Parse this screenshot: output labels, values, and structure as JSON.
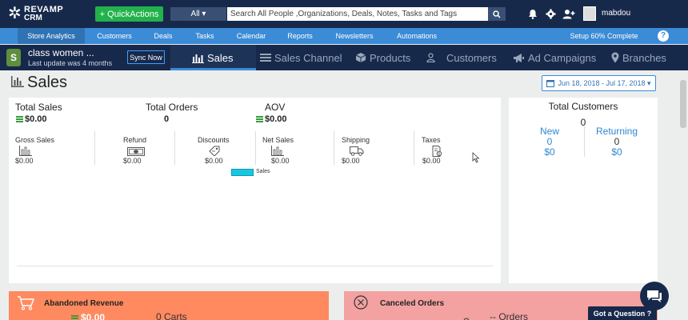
{
  "topbar": {
    "logo_line1": "REVAMP",
    "logo_line2": "CRM",
    "quick_actions": "+ QuickActions",
    "search_scope": "All ▾",
    "search_placeholder": "Search All People ,Organizations, Deals, Notes, Tasks and Tags",
    "username": "mabdou"
  },
  "nav": {
    "items": [
      {
        "label": "Store Analytics"
      },
      {
        "label": "Customers"
      },
      {
        "label": "Deals"
      },
      {
        "label": "Tasks"
      },
      {
        "label": "Calendar"
      },
      {
        "label": "Reports"
      },
      {
        "label": "Newsletters"
      },
      {
        "label": "Automations"
      }
    ],
    "setup": "Setup 60% Complete",
    "help": "?"
  },
  "store": {
    "name": "class women ...",
    "update": "Last update was 4 months",
    "sync": "Sync Now",
    "tabs": [
      {
        "label": "Sales"
      },
      {
        "label": "Sales Channel"
      },
      {
        "label": "Products"
      },
      {
        "label": "Customers"
      },
      {
        "label": "Ad Campaigns"
      },
      {
        "label": "Branches"
      }
    ]
  },
  "page": {
    "title": "Sales",
    "date_range": "Jun 18, 2018 - Jul 17, 2018 ▾"
  },
  "kpis": {
    "total_sales_label": "Total Sales",
    "total_sales_value": "$0.00",
    "total_orders_label": "Total Orders",
    "total_orders_value": "0",
    "aov_label": "AOV",
    "aov_value": "$0.00"
  },
  "metrics": [
    {
      "label": "Gross Sales",
      "value": "$0.00"
    },
    {
      "label": "Refund",
      "value": "$0.00"
    },
    {
      "label": "Discounts",
      "value": "$0.00"
    },
    {
      "label": "Net Sales",
      "value": "$0.00"
    },
    {
      "label": "Shipping",
      "value": "$0.00"
    },
    {
      "label": "Taxes",
      "value": "$0.00"
    }
  ],
  "chart": {
    "legend": "Sales",
    "legend_color": "#17c7e2"
  },
  "customers": {
    "title": "Total Customers",
    "total": "0",
    "new_label": "New",
    "new_count": "0",
    "new_value": "$0",
    "returning_label": "Returning",
    "returning_count": "0",
    "returning_value": "$0"
  },
  "panels": {
    "abandoned_title": "Abandoned Revenue",
    "abandoned_value": "$0.00",
    "abandoned_carts": "0 Carts",
    "canceled_title": "Canceled Orders",
    "canceled_orders": "-- Orders"
  },
  "support": {
    "question": "Got a Question ?"
  },
  "colors": {
    "header": "#17294b",
    "nav": "#3b8bd6",
    "accent": "#22b24c",
    "abandoned": "#ff8a60",
    "canceled": "#f4a1a1"
  }
}
